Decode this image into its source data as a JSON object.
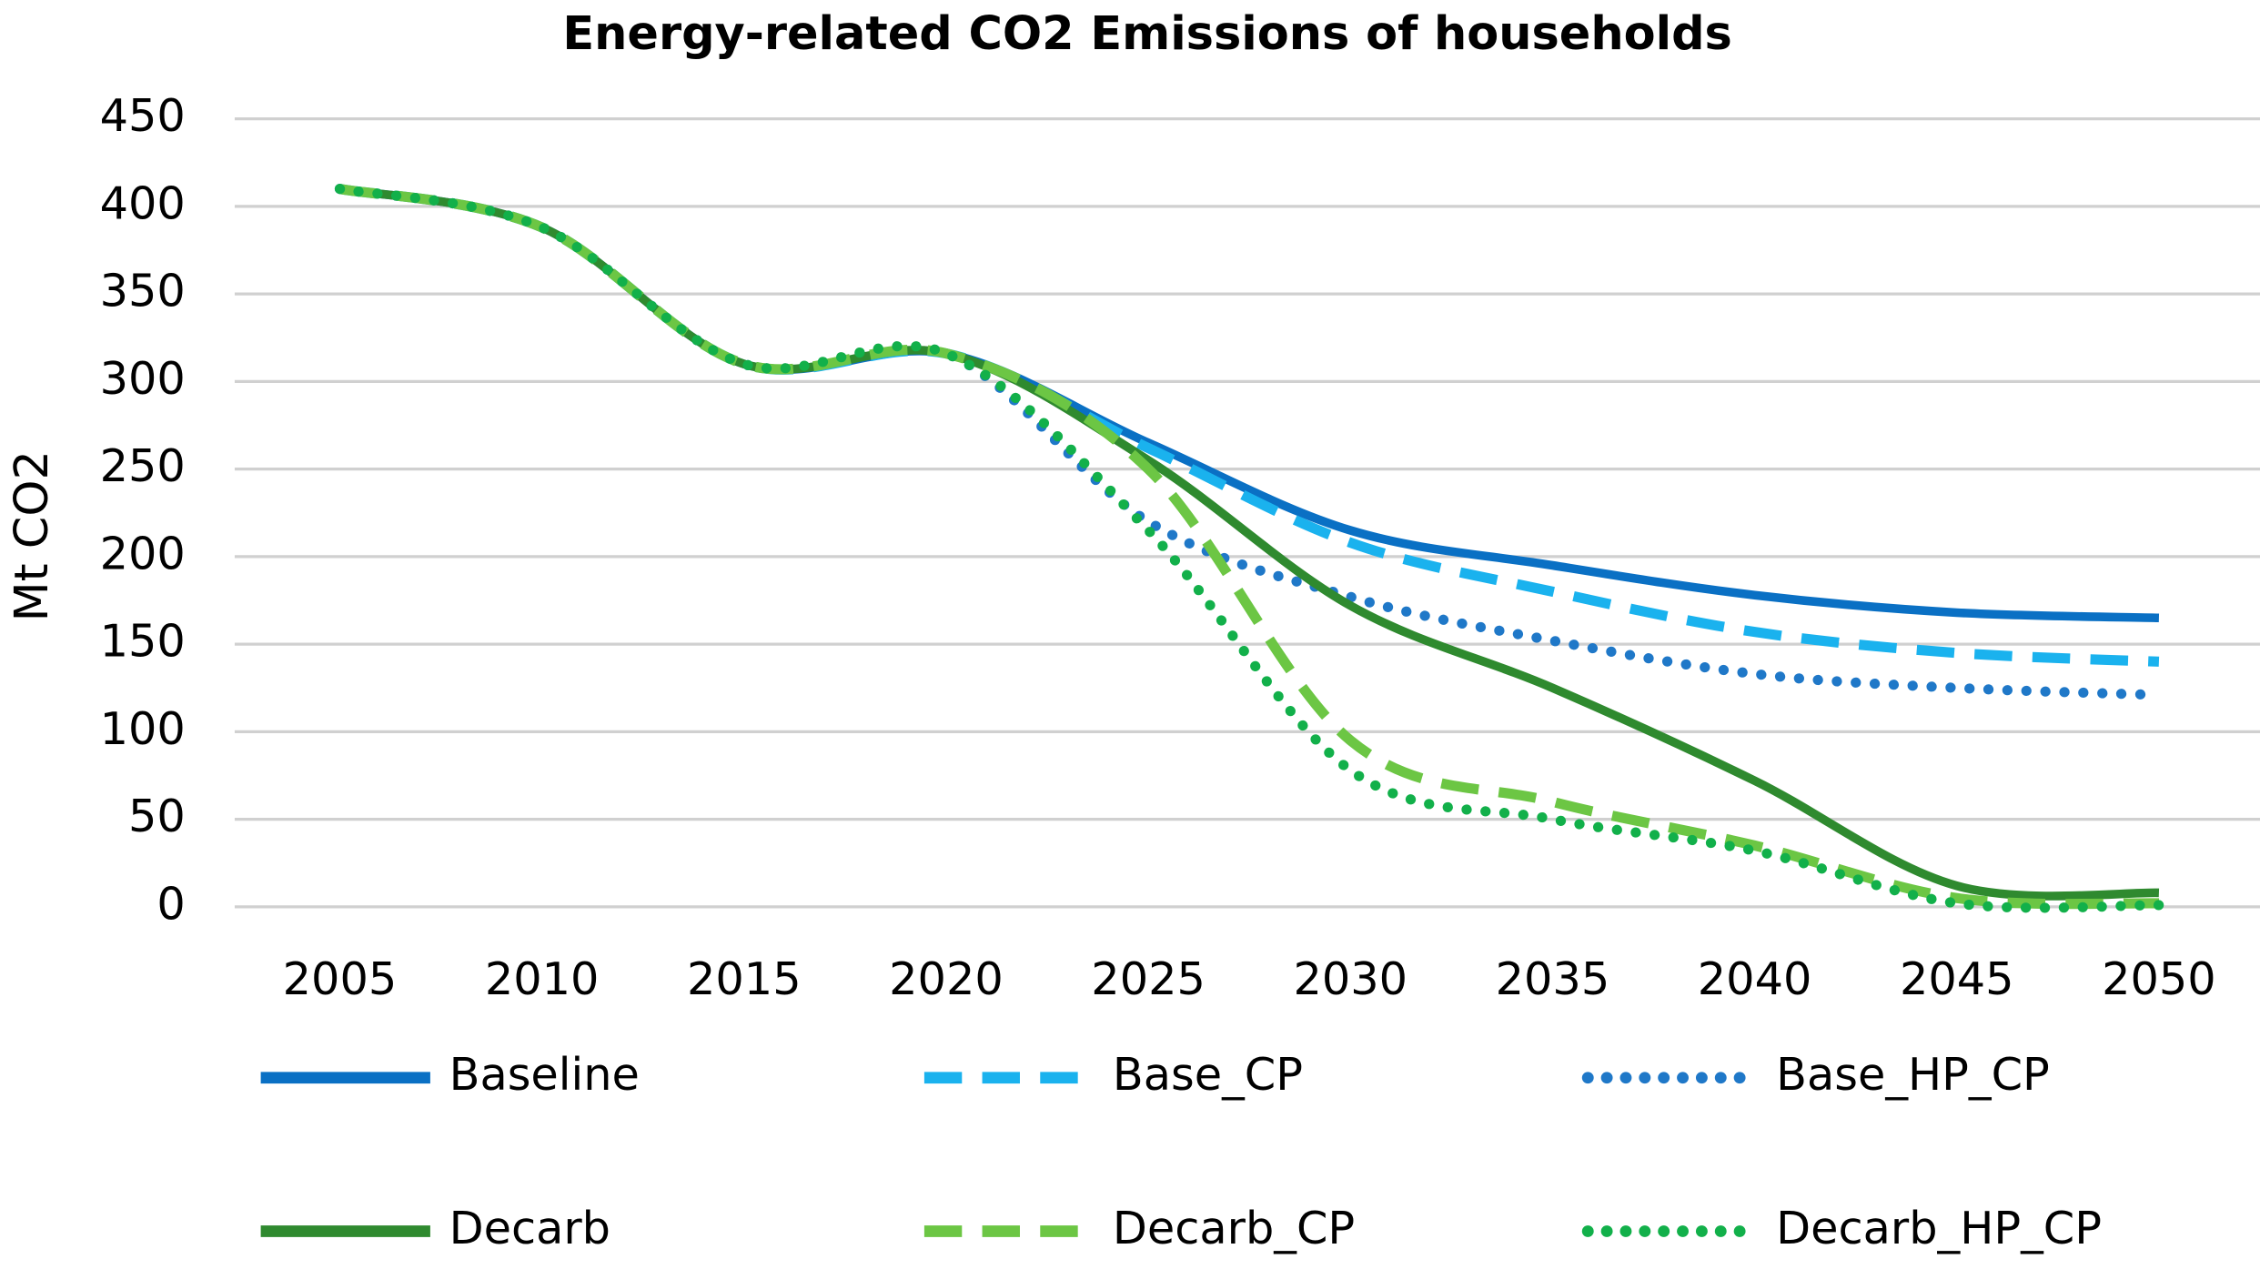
{
  "chart_data": {
    "type": "line",
    "title": "Energy-related  CO2 Emissions  of households",
    "y_label": "Mt CO2",
    "x": [
      2005,
      2010,
      2015,
      2020,
      2025,
      2030,
      2035,
      2040,
      2045,
      2050
    ],
    "xlim": [
      2002.4,
      2052.5
    ],
    "xticks": [
      2005,
      2010,
      2015,
      2020,
      2025,
      2030,
      2035,
      2040,
      2045,
      2050
    ],
    "ylim": [
      0,
      450
    ],
    "yticks": [
      0,
      50,
      100,
      150,
      200,
      250,
      300,
      350,
      400,
      450
    ],
    "grid": true,
    "series": [
      {
        "name": "Baseline",
        "color": "#0a70c4",
        "dash": "solid",
        "values": [
          410,
          388,
          310,
          316,
          265,
          215,
          195,
          178,
          168,
          165
        ]
      },
      {
        "name": "Base_CP",
        "color": "#1ab2ee",
        "dash": "dash",
        "values": [
          410,
          388,
          310,
          316,
          262,
          208,
          180,
          157,
          145,
          140
        ]
      },
      {
        "name": "Base_HP_CP",
        "color": "#1f78c8",
        "dash": "dot",
        "values": [
          410,
          388,
          310,
          316,
          220,
          177,
          152,
          133,
          125,
          121
        ]
      },
      {
        "name": "Decarb",
        "color": "#2f8a2f",
        "dash": "solid",
        "values": [
          410,
          388,
          310,
          316,
          255,
          172,
          125,
          72,
          12,
          8
        ]
      },
      {
        "name": "Decarb_CP",
        "color": "#6cc644",
        "dash": "dash",
        "values": [
          410,
          388,
          310,
          316,
          250,
          95,
          60,
          35,
          5,
          2
        ]
      },
      {
        "name": "Decarb_HP_CP",
        "color": "#12b04a",
        "dash": "dot",
        "values": [
          410,
          388,
          310,
          316,
          215,
          78,
          50,
          32,
          2,
          1
        ]
      }
    ]
  }
}
